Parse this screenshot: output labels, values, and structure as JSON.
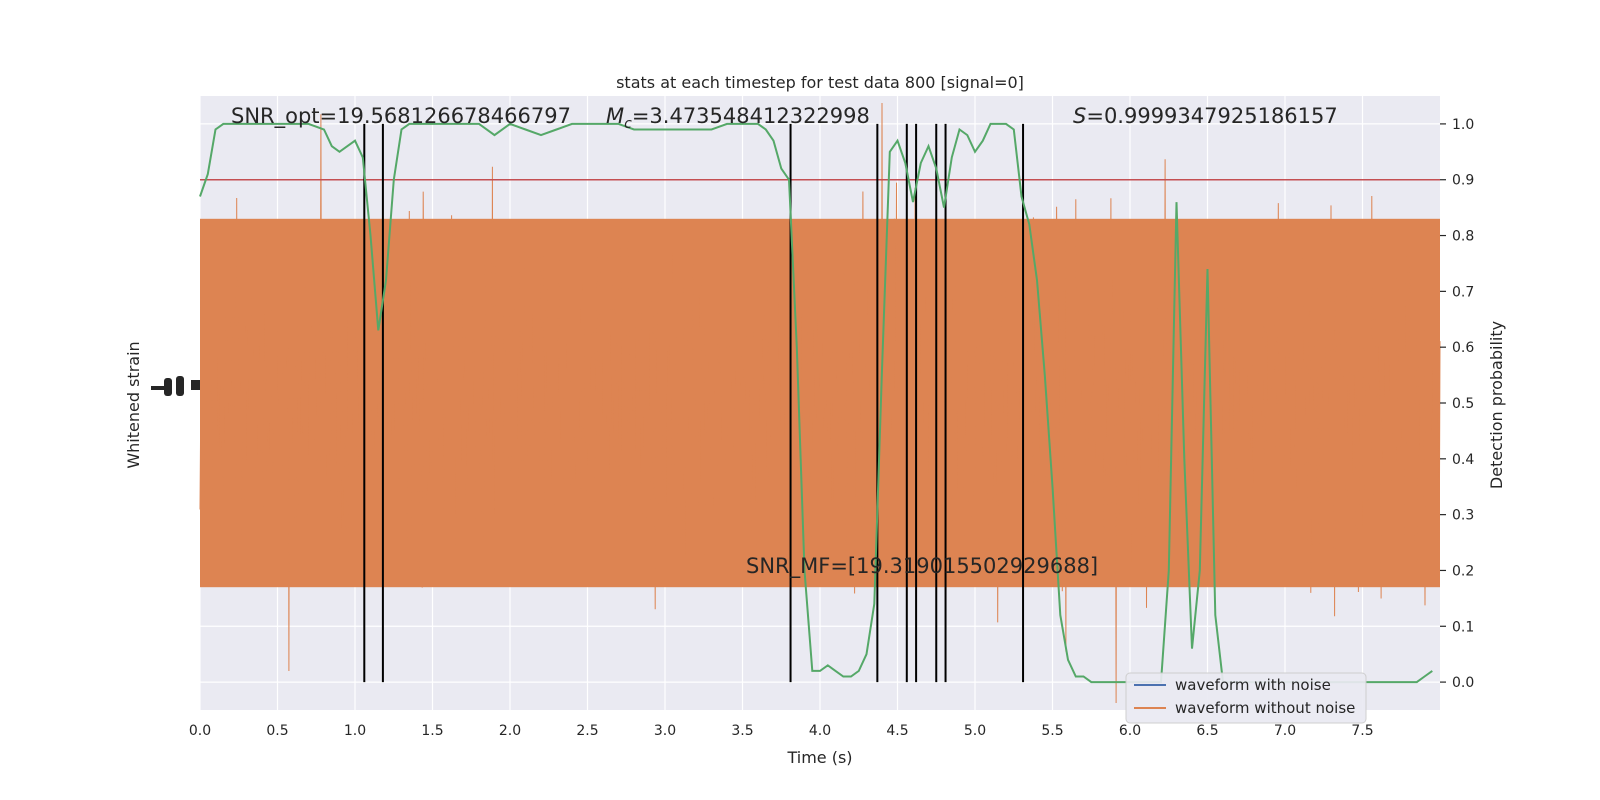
{
  "chart_data": {
    "type": "line",
    "title": "stats at each timestep for test data 800 [signal=0]",
    "xlabel": "Time (s)",
    "ylabel_left": "Whitened strain",
    "ylabel_right": "Detection probability",
    "xlim": [
      0.0,
      8.0
    ],
    "ylim_right": [
      -0.05,
      1.05
    ],
    "x_ticks": [
      "0.0",
      "0.5",
      "1.0",
      "1.5",
      "2.0",
      "2.5",
      "3.0",
      "3.5",
      "4.0",
      "4.5",
      "5.0",
      "5.5",
      "6.0",
      "6.5",
      "7.0",
      "7.5"
    ],
    "x_tick_values": [
      0.0,
      0.5,
      1.0,
      1.5,
      2.0,
      2.5,
      3.0,
      3.5,
      4.0,
      4.5,
      5.0,
      5.5,
      6.0,
      6.5,
      7.0,
      7.5
    ],
    "y_right_ticks": [
      "0.0",
      "0.1",
      "0.2",
      "0.3",
      "0.4",
      "0.5",
      "0.6",
      "0.7",
      "0.8",
      "0.9",
      "1.0"
    ],
    "y_right_tick_values": [
      0.0,
      0.1,
      0.2,
      0.3,
      0.4,
      0.5,
      0.6,
      0.7,
      0.8,
      0.9,
      1.0
    ],
    "grid": true,
    "legend_position": "lower-right",
    "annotations": {
      "snr_opt": "SNR_opt=19.568126678466797",
      "mc_symbol": "M",
      "mc_sub": "c",
      "mc_value": "=3.473548412322998",
      "s_symbol": "S",
      "s_value": "=0.9999347925186157",
      "snr_mf": "SNR_MF=[19.319015502929688]"
    },
    "series": [
      {
        "name": "waveform with noise",
        "color": "#4c72b0",
        "values": []
      },
      {
        "name": "waveform without noise",
        "color": "#dd8452",
        "values": "dense whitened-strain noise, approximately symmetric around center"
      }
    ],
    "threshold": {
      "value": 0.9,
      "color": "#c44e52"
    },
    "detection_probability": {
      "color": "#55a868",
      "x": [
        0.0,
        0.05,
        0.1,
        0.15,
        0.2,
        0.3,
        0.4,
        0.5,
        0.6,
        0.7,
        0.8,
        0.85,
        0.9,
        0.95,
        1.0,
        1.05,
        1.1,
        1.15,
        1.2,
        1.25,
        1.3,
        1.35,
        1.4,
        1.5,
        1.6,
        1.7,
        1.8,
        1.9,
        2.0,
        2.1,
        2.2,
        2.3,
        2.4,
        2.5,
        2.6,
        2.7,
        2.8,
        2.9,
        3.0,
        3.1,
        3.2,
        3.3,
        3.4,
        3.5,
        3.6,
        3.65,
        3.7,
        3.75,
        3.8,
        3.85,
        3.9,
        3.95,
        4.0,
        4.05,
        4.1,
        4.15,
        4.2,
        4.25,
        4.3,
        4.35,
        4.4,
        4.45,
        4.5,
        4.55,
        4.6,
        4.65,
        4.7,
        4.75,
        4.8,
        4.85,
        4.9,
        4.95,
        5.0,
        5.05,
        5.1,
        5.15,
        5.2,
        5.25,
        5.3,
        5.35,
        5.4,
        5.45,
        5.5,
        5.55,
        5.6,
        5.65,
        5.7,
        5.75,
        5.8,
        5.85,
        5.9,
        6.0,
        6.1,
        6.15,
        6.2,
        6.25,
        6.3,
        6.35,
        6.4,
        6.45,
        6.5,
        6.55,
        6.6,
        6.65,
        6.7,
        6.8,
        6.9,
        7.0,
        7.1,
        7.2,
        7.3,
        7.4,
        7.5,
        7.6,
        7.7,
        7.75,
        7.8,
        7.85,
        7.9,
        7.95
      ],
      "y": [
        0.87,
        0.91,
        0.99,
        1.0,
        1.0,
        1.0,
        1.0,
        1.0,
        1.0,
        1.0,
        0.99,
        0.96,
        0.95,
        0.96,
        0.97,
        0.94,
        0.8,
        0.63,
        0.72,
        0.9,
        0.99,
        1.0,
        1.0,
        1.0,
        1.0,
        1.0,
        1.0,
        0.98,
        1.0,
        0.99,
        0.98,
        0.99,
        1.0,
        1.0,
        1.0,
        1.0,
        0.99,
        0.99,
        0.99,
        0.99,
        0.99,
        0.99,
        1.0,
        1.0,
        1.0,
        0.99,
        0.97,
        0.92,
        0.9,
        0.6,
        0.2,
        0.02,
        0.02,
        0.03,
        0.02,
        0.01,
        0.01,
        0.02,
        0.05,
        0.14,
        0.56,
        0.95,
        0.97,
        0.93,
        0.86,
        0.93,
        0.96,
        0.92,
        0.85,
        0.94,
        0.99,
        0.98,
        0.95,
        0.97,
        1.0,
        1.0,
        1.0,
        0.99,
        0.87,
        0.82,
        0.72,
        0.55,
        0.35,
        0.12,
        0.04,
        0.01,
        0.01,
        0.0,
        0.0,
        0.0,
        0.0,
        0.0,
        0.0,
        0.0,
        0.0,
        0.2,
        0.86,
        0.4,
        0.06,
        0.2,
        0.74,
        0.12,
        0.0,
        0.0,
        0.0,
        0.0,
        0.0,
        0.0,
        0.0,
        0.0,
        0.0,
        0.0,
        0.0,
        0.0,
        0.0,
        0.0,
        0.0,
        0.0,
        0.01,
        0.02
      ]
    },
    "vertical_markers_x": [
      1.06,
      1.18,
      3.81,
      4.37,
      4.56,
      4.62,
      4.75,
      4.81,
      5.31
    ]
  }
}
